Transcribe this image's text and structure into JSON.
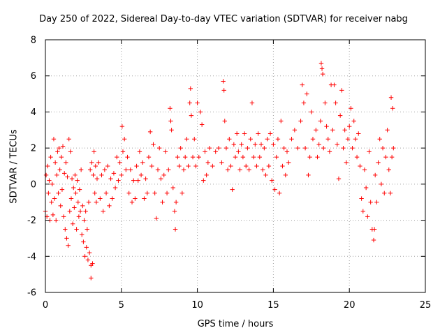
{
  "chart_data": {
    "type": "scatter",
    "title": "Day 250 of 2022, Sidereal Day-to-day VTEC variation (SDTVAR) for receiver nabg",
    "xlabel": "GPS time / hours",
    "ylabel": "SDTVAR / TECUs",
    "xlim": [
      0,
      25
    ],
    "ylim": [
      -6,
      8
    ],
    "xticks": [
      0,
      5,
      10,
      15,
      20,
      25
    ],
    "yticks": [
      -6,
      -4,
      -2,
      0,
      2,
      4,
      6,
      8
    ],
    "grid": true,
    "marker": "+",
    "color": "#ff0000",
    "series": [
      {
        "name": "SDTVAR",
        "points": [
          [
            0.0,
            -1.5
          ],
          [
            0.05,
            0.5
          ],
          [
            0.1,
            -1.8
          ],
          [
            0.15,
            1.0
          ],
          [
            0.2,
            -0.5
          ],
          [
            0.25,
            0.2
          ],
          [
            0.3,
            -2.0
          ],
          [
            0.35,
            1.5
          ],
          [
            0.4,
            -1.0
          ],
          [
            0.45,
            0.0
          ],
          [
            0.5,
            -1.7
          ],
          [
            0.55,
            2.5
          ],
          [
            0.6,
            -0.8
          ],
          [
            0.65,
            1.2
          ],
          [
            0.7,
            -2.0
          ],
          [
            0.75,
            0.5
          ],
          [
            0.8,
            1.8
          ],
          [
            0.85,
            -0.5
          ],
          [
            0.9,
            2.0
          ],
          [
            0.95,
            0.8
          ],
          [
            1.0,
            -1.2
          ],
          [
            1.05,
            1.5
          ],
          [
            1.1,
            -0.3
          ],
          [
            1.15,
            2.1
          ],
          [
            1.2,
            -1.8
          ],
          [
            1.25,
            0.6
          ],
          [
            1.3,
            -2.5
          ],
          [
            1.35,
            1.2
          ],
          [
            1.4,
            -3.0
          ],
          [
            1.45,
            0.4
          ],
          [
            1.5,
            -3.4
          ],
          [
            1.55,
            2.5
          ],
          [
            1.6,
            -1.5
          ],
          [
            1.65,
            1.8
          ],
          [
            1.7,
            -0.8
          ],
          [
            1.75,
            0.3
          ],
          [
            1.8,
            -2.2
          ],
          [
            1.85,
            -0.2
          ],
          [
            1.9,
            -1.3
          ],
          [
            1.95,
            0.5
          ],
          [
            2.0,
            -0.5
          ],
          [
            2.05,
            -2.5
          ],
          [
            2.1,
            0.2
          ],
          [
            2.15,
            -1.0
          ],
          [
            2.2,
            -1.8
          ],
          [
            2.25,
            -0.3
          ],
          [
            2.3,
            -1.5
          ],
          [
            2.35,
            0.8
          ],
          [
            2.4,
            -2.8
          ],
          [
            2.45,
            -1.2
          ],
          [
            2.5,
            -3.2
          ],
          [
            2.55,
            -2.0
          ],
          [
            2.6,
            -4.0
          ],
          [
            2.65,
            -1.5
          ],
          [
            2.7,
            -3.5
          ],
          [
            2.75,
            -2.5
          ],
          [
            2.8,
            -4.2
          ],
          [
            2.85,
            -1.0
          ],
          [
            2.9,
            -3.8
          ],
          [
            2.95,
            0.8
          ],
          [
            3.0,
            -5.2
          ],
          [
            3.0,
            -4.5
          ],
          [
            3.05,
            1.2
          ],
          [
            3.1,
            -4.4
          ],
          [
            3.15,
            0.5
          ],
          [
            3.2,
            1.8
          ],
          [
            3.25,
            -0.5
          ],
          [
            3.3,
            1.0
          ],
          [
            3.35,
            -1.0
          ],
          [
            3.4,
            0.3
          ],
          [
            3.5,
            1.2
          ],
          [
            3.6,
            -0.8
          ],
          [
            3.7,
            0.5
          ],
          [
            3.8,
            -1.5
          ],
          [
            3.9,
            0.8
          ],
          [
            4.0,
            -0.5
          ],
          [
            4.1,
            1.0
          ],
          [
            4.2,
            -1.2
          ],
          [
            4.3,
            0.3
          ],
          [
            4.4,
            -0.8
          ],
          [
            4.5,
            0.6
          ],
          [
            4.6,
            -0.2
          ],
          [
            4.7,
            1.5
          ],
          [
            4.8,
            0.2
          ],
          [
            4.9,
            1.2
          ],
          [
            5.0,
            0.5
          ],
          [
            5.05,
            3.2
          ],
          [
            5.1,
            1.8
          ],
          [
            5.2,
            2.5
          ],
          [
            5.3,
            0.8
          ],
          [
            5.4,
            1.5
          ],
          [
            5.5,
            -0.5
          ],
          [
            5.6,
            0.8
          ],
          [
            5.7,
            -1.0
          ],
          [
            5.8,
            0.2
          ],
          [
            5.9,
            -0.8
          ],
          [
            6.0,
            1.0
          ],
          [
            6.1,
            0.2
          ],
          [
            6.2,
            1.8
          ],
          [
            6.3,
            0.5
          ],
          [
            6.4,
            1.2
          ],
          [
            6.5,
            -0.8
          ],
          [
            6.6,
            0.3
          ],
          [
            6.7,
            -0.5
          ],
          [
            6.8,
            1.5
          ],
          [
            6.9,
            2.9
          ],
          [
            7.0,
            1.0
          ],
          [
            7.1,
            2.2
          ],
          [
            7.2,
            -0.5
          ],
          [
            7.3,
            -1.9
          ],
          [
            7.4,
            0.8
          ],
          [
            7.5,
            2.0
          ],
          [
            7.6,
            0.3
          ],
          [
            7.7,
            -1.0
          ],
          [
            7.8,
            0.5
          ],
          [
            7.9,
            1.8
          ],
          [
            8.0,
            -0.5
          ],
          [
            8.1,
            0.8
          ],
          [
            8.2,
            4.2
          ],
          [
            8.25,
            3.5
          ],
          [
            8.3,
            3.0
          ],
          [
            8.4,
            -0.2
          ],
          [
            8.5,
            -1.5
          ],
          [
            8.55,
            -2.5
          ],
          [
            8.6,
            -1.0
          ],
          [
            8.7,
            1.5
          ],
          [
            8.8,
            1.0
          ],
          [
            8.9,
            2.0
          ],
          [
            9.0,
            -0.5
          ],
          [
            9.1,
            0.8
          ],
          [
            9.2,
            1.5
          ],
          [
            9.3,
            2.5
          ],
          [
            9.4,
            1.0
          ],
          [
            9.5,
            4.5
          ],
          [
            9.55,
            5.3
          ],
          [
            9.6,
            3.8
          ],
          [
            9.7,
            1.5
          ],
          [
            9.8,
            2.5
          ],
          [
            9.9,
            1.0
          ],
          [
            10.0,
            4.5
          ],
          [
            10.1,
            1.5
          ],
          [
            10.2,
            4.0
          ],
          [
            10.3,
            3.3
          ],
          [
            10.4,
            0.2
          ],
          [
            10.5,
            1.8
          ],
          [
            10.6,
            0.5
          ],
          [
            10.7,
            1.2
          ],
          [
            10.8,
            2.0
          ],
          [
            11.0,
            1.0
          ],
          [
            11.2,
            1.8
          ],
          [
            11.4,
            2.0
          ],
          [
            11.6,
            1.2
          ],
          [
            11.7,
            5.7
          ],
          [
            11.75,
            5.2
          ],
          [
            11.8,
            3.5
          ],
          [
            11.9,
            2.0
          ],
          [
            12.0,
            0.8
          ],
          [
            12.1,
            2.5
          ],
          [
            12.2,
            1.0
          ],
          [
            12.3,
            -0.3
          ],
          [
            12.4,
            2.2
          ],
          [
            12.5,
            1.5
          ],
          [
            12.6,
            2.8
          ],
          [
            12.7,
            1.8
          ],
          [
            12.8,
            0.8
          ],
          [
            12.9,
            2.2
          ],
          [
            13.0,
            1.5
          ],
          [
            13.1,
            2.8
          ],
          [
            13.2,
            1.0
          ],
          [
            13.3,
            2.0
          ],
          [
            13.4,
            0.8
          ],
          [
            13.5,
            2.5
          ],
          [
            13.6,
            4.5
          ],
          [
            13.7,
            1.5
          ],
          [
            13.8,
            2.2
          ],
          [
            13.9,
            1.0
          ],
          [
            14.0,
            2.8
          ],
          [
            14.1,
            1.5
          ],
          [
            14.2,
            2.2
          ],
          [
            14.3,
            0.8
          ],
          [
            14.4,
            2.0
          ],
          [
            14.5,
            0.5
          ],
          [
            14.6,
            2.5
          ],
          [
            14.7,
            1.0
          ],
          [
            14.8,
            2.8
          ],
          [
            14.9,
            0.2
          ],
          [
            15.0,
            2.2
          ],
          [
            15.1,
            -0.3
          ],
          [
            15.2,
            1.5
          ],
          [
            15.3,
            2.5
          ],
          [
            15.4,
            -0.5
          ],
          [
            15.5,
            3.5
          ],
          [
            15.6,
            1.0
          ],
          [
            15.7,
            2.0
          ],
          [
            15.8,
            0.5
          ],
          [
            15.9,
            1.8
          ],
          [
            16.0,
            1.2
          ],
          [
            16.2,
            2.5
          ],
          [
            16.4,
            3.0
          ],
          [
            16.6,
            2.0
          ],
          [
            16.8,
            3.5
          ],
          [
            16.9,
            5.5
          ],
          [
            17.0,
            4.5
          ],
          [
            17.1,
            2.0
          ],
          [
            17.2,
            5.0
          ],
          [
            17.3,
            0.5
          ],
          [
            17.4,
            1.5
          ],
          [
            17.5,
            4.0
          ],
          [
            17.6,
            2.5
          ],
          [
            17.8,
            3.0
          ],
          [
            17.9,
            1.5
          ],
          [
            18.0,
            2.2
          ],
          [
            18.1,
            3.5
          ],
          [
            18.15,
            6.7
          ],
          [
            18.2,
            6.4
          ],
          [
            18.25,
            6.1
          ],
          [
            18.3,
            2.0
          ],
          [
            18.4,
            4.5
          ],
          [
            18.5,
            3.2
          ],
          [
            18.6,
            2.5
          ],
          [
            18.7,
            1.8
          ],
          [
            18.8,
            5.5
          ],
          [
            18.9,
            3.0
          ],
          [
            19.0,
            5.5
          ],
          [
            19.1,
            4.5
          ],
          [
            19.2,
            2.2
          ],
          [
            19.3,
            0.3
          ],
          [
            19.4,
            3.8
          ],
          [
            19.5,
            5.2
          ],
          [
            19.6,
            2.0
          ],
          [
            19.7,
            3.0
          ],
          [
            19.8,
            1.2
          ],
          [
            19.9,
            2.5
          ],
          [
            20.0,
            3.2
          ],
          [
            20.1,
            4.2
          ],
          [
            20.2,
            2.0
          ],
          [
            20.3,
            3.5
          ],
          [
            20.4,
            2.5
          ],
          [
            20.5,
            1.5
          ],
          [
            20.6,
            2.8
          ],
          [
            20.7,
            1.0
          ],
          [
            20.8,
            -0.8
          ],
          [
            20.9,
            -1.5
          ],
          [
            21.0,
            0.8
          ],
          [
            21.1,
            -0.2
          ],
          [
            21.2,
            -1.8
          ],
          [
            21.3,
            1.8
          ],
          [
            21.4,
            -1.0
          ],
          [
            21.5,
            -2.5
          ],
          [
            21.6,
            -3.1
          ],
          [
            21.65,
            -2.5
          ],
          [
            21.7,
            0.5
          ],
          [
            21.8,
            -1.0
          ],
          [
            21.9,
            1.2
          ],
          [
            22.0,
            2.5
          ],
          [
            22.1,
            0.0
          ],
          [
            22.2,
            2.0
          ],
          [
            22.3,
            -0.5
          ],
          [
            22.4,
            1.5
          ],
          [
            22.5,
            3.0
          ],
          [
            22.6,
            0.8
          ],
          [
            22.7,
            -0.5
          ],
          [
            22.75,
            4.8
          ],
          [
            22.8,
            1.5
          ],
          [
            22.85,
            4.2
          ],
          [
            22.9,
            2.0
          ]
        ]
      }
    ]
  }
}
